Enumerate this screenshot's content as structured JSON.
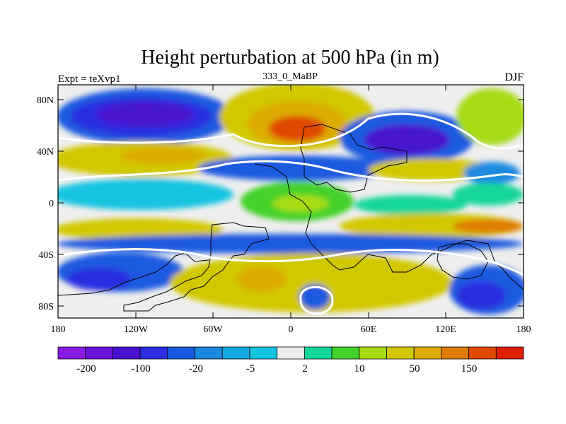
{
  "title": "Height perturbation at 500 hPa (in m)",
  "left_label": "Expt = teXvp1",
  "center_label": "333_0_MaBP",
  "right_label": "DJF",
  "lat_labels": [
    "80N",
    "40N",
    "0",
    "40S",
    "80S"
  ],
  "lon_labels": [
    "180",
    "120W",
    "60W",
    "0",
    "60E",
    "120E",
    "180"
  ],
  "colorbar": {
    "colors": [
      "#8a1ae6",
      "#6b12d9",
      "#4a12d0",
      "#2a2ee0",
      "#1a5ae0",
      "#1a8ae0",
      "#12aae0",
      "#12c4e0",
      "#eeeeee",
      "#12d69a",
      "#44d22a",
      "#a6dc14",
      "#d2c800",
      "#dcaa00",
      "#e07c00",
      "#e04a00",
      "#e01e00"
    ],
    "labels": [
      "-200",
      "-100",
      "-20",
      "-5",
      "2",
      "10",
      "50",
      "150"
    ]
  },
  "field_colors": {
    "missing": "#eeeeee",
    "neg_strong": "#4a12d0",
    "neg_medium": "#2a2ee0",
    "neg_blue": "#1a5ae0",
    "neg_light": "#1a8ae0",
    "neg_cyan": "#12c4e0",
    "pos_teal": "#12d69a",
    "pos_green": "#44d22a",
    "pos_lime": "#a6dc14",
    "pos_yellow": "#d2c800",
    "pos_orange": "#dcaa00",
    "pos_deep": "#e07c00",
    "pos_red": "#e04a00"
  }
}
